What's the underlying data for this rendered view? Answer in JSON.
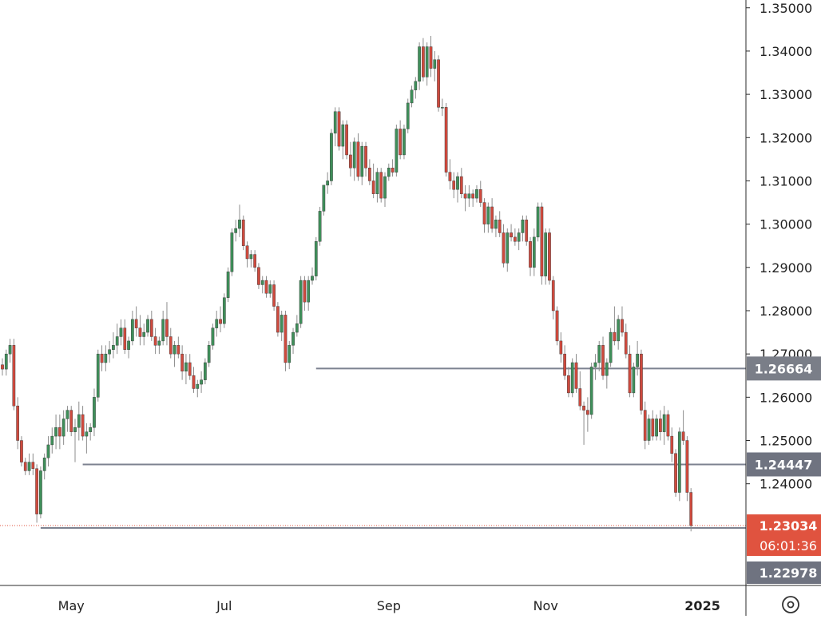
{
  "chart_data": {
    "type": "candlestick",
    "title": "",
    "xlabel": "",
    "ylabel": "",
    "ylim": [
      1.2165,
      1.3518
    ],
    "y_ticks": [
      "1.35000",
      "1.34000",
      "1.33000",
      "1.32000",
      "1.31000",
      "1.30000",
      "1.29000",
      "1.28000",
      "1.27000",
      "1.26000",
      "1.25000",
      "1.24000"
    ],
    "x_ticks": [
      {
        "label": "May",
        "bold": false
      },
      {
        "label": "Jul",
        "bold": false
      },
      {
        "label": "Sep",
        "bold": false
      },
      {
        "label": "Nov",
        "bold": false
      },
      {
        "label": "2025",
        "bold": true
      }
    ],
    "colors": {
      "up": "#3f8f5a",
      "down": "#cf4a3e",
      "wick": "#8c8c8c",
      "level_line": "#7c8290",
      "last_price": "#e0533f",
      "badge_gray": "#7a7e88",
      "badge_dark": "#6f7380",
      "axis": "#d8d8d8"
    },
    "levels": [
      {
        "value": 1.26664,
        "label": "1.26664"
      },
      {
        "value": 1.24447,
        "label": "1.24447"
      }
    ],
    "last_price": {
      "value": 1.23034,
      "label": "1.23034",
      "countdown": "06:01:36"
    },
    "low_marker": {
      "value": 1.22978,
      "label": "1.22978"
    },
    "candles": [
      [
        1.2675,
        1.269,
        1.265,
        1.2665
      ],
      [
        1.2665,
        1.271,
        1.265,
        1.27
      ],
      [
        1.27,
        1.2735,
        1.268,
        1.272
      ],
      [
        1.272,
        1.2735,
        1.257,
        1.258
      ],
      [
        1.258,
        1.26,
        1.248,
        1.25
      ],
      [
        1.25,
        1.251,
        1.244,
        1.245
      ],
      [
        1.245,
        1.246,
        1.242,
        1.243
      ],
      [
        1.243,
        1.247,
        1.242,
        1.245
      ],
      [
        1.245,
        1.247,
        1.242,
        1.2435
      ],
      [
        1.2435,
        1.2445,
        1.231,
        1.233
      ],
      [
        1.233,
        1.244,
        1.232,
        1.243
      ],
      [
        1.243,
        1.247,
        1.241,
        1.246
      ],
      [
        1.246,
        1.251,
        1.244,
        1.249
      ],
      [
        1.249,
        1.253,
        1.247,
        1.251
      ],
      [
        1.251,
        1.256,
        1.248,
        1.253
      ],
      [
        1.253,
        1.256,
        1.248,
        1.251
      ],
      [
        1.251,
        1.257,
        1.249,
        1.255
      ],
      [
        1.255,
        1.258,
        1.252,
        1.257
      ],
      [
        1.257,
        1.258,
        1.251,
        1.252
      ],
      [
        1.252,
        1.255,
        1.245,
        1.253
      ],
      [
        1.253,
        1.259,
        1.25,
        1.256
      ],
      [
        1.256,
        1.258,
        1.25,
        1.251
      ],
      [
        1.251,
        1.254,
        1.247,
        1.252
      ],
      [
        1.252,
        1.254,
        1.25,
        1.253
      ],
      [
        1.253,
        1.262,
        1.251,
        1.26
      ],
      [
        1.26,
        1.271,
        1.259,
        1.27
      ],
      [
        1.27,
        1.272,
        1.266,
        1.268
      ],
      [
        1.268,
        1.272,
        1.266,
        1.27
      ],
      [
        1.27,
        1.273,
        1.268,
        1.271
      ],
      [
        1.271,
        1.275,
        1.269,
        1.272
      ],
      [
        1.272,
        1.277,
        1.27,
        1.274
      ],
      [
        1.274,
        1.278,
        1.272,
        1.276
      ],
      [
        1.276,
        1.278,
        1.27,
        1.271
      ],
      [
        1.271,
        1.274,
        1.269,
        1.273
      ],
      [
        1.273,
        1.28,
        1.272,
        1.278
      ],
      [
        1.278,
        1.281,
        1.274,
        1.276
      ],
      [
        1.276,
        1.279,
        1.272,
        1.274
      ],
      [
        1.274,
        1.277,
        1.272,
        1.275
      ],
      [
        1.275,
        1.279,
        1.274,
        1.278
      ],
      [
        1.278,
        1.28,
        1.273,
        1.274
      ],
      [
        1.274,
        1.276,
        1.27,
        1.272
      ],
      [
        1.272,
        1.274,
        1.27,
        1.273
      ],
      [
        1.273,
        1.28,
        1.272,
        1.278
      ],
      [
        1.278,
        1.282,
        1.272,
        1.274
      ],
      [
        1.274,
        1.276,
        1.269,
        1.27
      ],
      [
        1.27,
        1.273,
        1.267,
        1.272
      ],
      [
        1.272,
        1.274,
        1.269,
        1.27
      ],
      [
        1.27,
        1.272,
        1.264,
        1.266
      ],
      [
        1.266,
        1.27,
        1.263,
        1.268
      ],
      [
        1.268,
        1.27,
        1.264,
        1.265
      ],
      [
        1.265,
        1.267,
        1.261,
        1.262
      ],
      [
        1.262,
        1.264,
        1.26,
        1.263
      ],
      [
        1.263,
        1.266,
        1.261,
        1.264
      ],
      [
        1.264,
        1.269,
        1.263,
        1.268
      ],
      [
        1.268,
        1.273,
        1.267,
        1.272
      ],
      [
        1.272,
        1.277,
        1.271,
        1.276
      ],
      [
        1.276,
        1.28,
        1.274,
        1.278
      ],
      [
        1.278,
        1.281,
        1.275,
        1.277
      ],
      [
        1.277,
        1.284,
        1.276,
        1.283
      ],
      [
        1.283,
        1.29,
        1.282,
        1.289
      ],
      [
        1.289,
        1.299,
        1.288,
        1.298
      ],
      [
        1.298,
        1.301,
        1.296,
        1.299
      ],
      [
        1.299,
        1.3045,
        1.297,
        1.301
      ],
      [
        1.301,
        1.302,
        1.294,
        1.295
      ],
      [
        1.295,
        1.296,
        1.29,
        1.292
      ],
      [
        1.292,
        1.294,
        1.29,
        1.293
      ],
      [
        1.293,
        1.294,
        1.289,
        1.29
      ],
      [
        1.29,
        1.291,
        1.285,
        1.286
      ],
      [
        1.286,
        1.288,
        1.284,
        1.287
      ],
      [
        1.287,
        1.288,
        1.283,
        1.284
      ],
      [
        1.284,
        1.287,
        1.283,
        1.286
      ],
      [
        1.286,
        1.287,
        1.28,
        1.281
      ],
      [
        1.281,
        1.282,
        1.274,
        1.275
      ],
      [
        1.275,
        1.28,
        1.273,
        1.279
      ],
      [
        1.279,
        1.28,
        1.266,
        1.268
      ],
      [
        1.268,
        1.273,
        1.2665,
        1.272
      ],
      [
        1.272,
        1.276,
        1.27,
        1.275
      ],
      [
        1.275,
        1.279,
        1.274,
        1.277
      ],
      [
        1.277,
        1.288,
        1.276,
        1.287
      ],
      [
        1.287,
        1.288,
        1.28,
        1.282
      ],
      [
        1.282,
        1.288,
        1.28,
        1.287
      ],
      [
        1.287,
        1.29,
        1.286,
        1.288
      ],
      [
        1.288,
        1.297,
        1.287,
        1.296
      ],
      [
        1.296,
        1.304,
        1.295,
        1.303
      ],
      [
        1.303,
        1.309,
        1.302,
        1.309
      ],
      [
        1.309,
        1.312,
        1.307,
        1.31
      ],
      [
        1.31,
        1.322,
        1.309,
        1.321
      ],
      [
        1.321,
        1.327,
        1.318,
        1.326
      ],
      [
        1.326,
        1.327,
        1.317,
        1.318
      ],
      [
        1.318,
        1.324,
        1.315,
        1.323
      ],
      [
        1.323,
        1.324,
        1.315,
        1.316
      ],
      [
        1.316,
        1.319,
        1.311,
        1.313
      ],
      [
        1.313,
        1.32,
        1.31,
        1.319
      ],
      [
        1.319,
        1.321,
        1.31,
        1.311
      ],
      [
        1.311,
        1.319,
        1.309,
        1.318
      ],
      [
        1.318,
        1.319,
        1.311,
        1.313
      ],
      [
        1.313,
        1.315,
        1.309,
        1.31
      ],
      [
        1.31,
        1.314,
        1.306,
        1.307
      ],
      [
        1.307,
        1.313,
        1.305,
        1.312
      ],
      [
        1.312,
        1.313,
        1.305,
        1.306
      ],
      [
        1.306,
        1.312,
        1.304,
        1.311
      ],
      [
        1.311,
        1.314,
        1.31,
        1.313
      ],
      [
        1.313,
        1.315,
        1.311,
        1.312
      ],
      [
        1.312,
        1.323,
        1.311,
        1.322
      ],
      [
        1.322,
        1.324,
        1.315,
        1.316
      ],
      [
        1.316,
        1.323,
        1.315,
        1.322
      ],
      [
        1.322,
        1.329,
        1.321,
        1.328
      ],
      [
        1.328,
        1.332,
        1.327,
        1.331
      ],
      [
        1.331,
        1.334,
        1.329,
        1.333
      ],
      [
        1.333,
        1.342,
        1.331,
        1.341
      ],
      [
        1.341,
        1.343,
        1.333,
        1.334
      ],
      [
        1.334,
        1.342,
        1.332,
        1.341
      ],
      [
        1.341,
        1.3435,
        1.334,
        1.336
      ],
      [
        1.336,
        1.34,
        1.333,
        1.338
      ],
      [
        1.338,
        1.339,
        1.326,
        1.327
      ],
      [
        1.327,
        1.329,
        1.325,
        1.327
      ],
      [
        1.327,
        1.328,
        1.311,
        1.312
      ],
      [
        1.312,
        1.315,
        1.308,
        1.31
      ],
      [
        1.31,
        1.312,
        1.306,
        1.308
      ],
      [
        1.308,
        1.312,
        1.305,
        1.311
      ],
      [
        1.311,
        1.313,
        1.306,
        1.307
      ],
      [
        1.307,
        1.309,
        1.303,
        1.306
      ],
      [
        1.306,
        1.309,
        1.304,
        1.307
      ],
      [
        1.307,
        1.308,
        1.304,
        1.306
      ],
      [
        1.306,
        1.309,
        1.305,
        1.308
      ],
      [
        1.308,
        1.31,
        1.304,
        1.305
      ],
      [
        1.305,
        1.306,
        1.298,
        1.3
      ],
      [
        1.3,
        1.305,
        1.298,
        1.304
      ],
      [
        1.304,
        1.306,
        1.298,
        1.299
      ],
      [
        1.299,
        1.302,
        1.297,
        1.301
      ],
      [
        1.301,
        1.303,
        1.297,
        1.298
      ],
      [
        1.298,
        1.3,
        1.29,
        1.291
      ],
      [
        1.291,
        1.299,
        1.289,
        1.298
      ],
      [
        1.298,
        1.3,
        1.296,
        1.297
      ],
      [
        1.297,
        1.299,
        1.295,
        1.296
      ],
      [
        1.296,
        1.299,
        1.294,
        1.298
      ],
      [
        1.298,
        1.302,
        1.296,
        1.301
      ],
      [
        1.301,
        1.302,
        1.295,
        1.296
      ],
      [
        1.296,
        1.297,
        1.288,
        1.29
      ],
      [
        1.29,
        1.299,
        1.288,
        1.297
      ],
      [
        1.297,
        1.305,
        1.296,
        1.304
      ],
      [
        1.304,
        1.305,
        1.286,
        1.288
      ],
      [
        1.288,
        1.299,
        1.286,
        1.298
      ],
      [
        1.298,
        1.299,
        1.286,
        1.287
      ],
      [
        1.287,
        1.288,
        1.278,
        1.28
      ],
      [
        1.28,
        1.281,
        1.272,
        1.273
      ],
      [
        1.273,
        1.275,
        1.268,
        1.27
      ],
      [
        1.27,
        1.272,
        1.264,
        1.265
      ],
      [
        1.265,
        1.267,
        1.26,
        1.261
      ],
      [
        1.261,
        1.269,
        1.26,
        1.268
      ],
      [
        1.268,
        1.27,
        1.261,
        1.262
      ],
      [
        1.262,
        1.266,
        1.257,
        1.258
      ],
      [
        1.258,
        1.259,
        1.249,
        1.257
      ],
      [
        1.257,
        1.26,
        1.252,
        1.256
      ],
      [
        1.256,
        1.268,
        1.255,
        1.267
      ],
      [
        1.267,
        1.27,
        1.264,
        1.268
      ],
      [
        1.268,
        1.273,
        1.266,
        1.272
      ],
      [
        1.272,
        1.274,
        1.264,
        1.265
      ],
      [
        1.265,
        1.269,
        1.262,
        1.268
      ],
      [
        1.268,
        1.276,
        1.267,
        1.275
      ],
      [
        1.275,
        1.281,
        1.272,
        1.273
      ],
      [
        1.273,
        1.279,
        1.271,
        1.278
      ],
      [
        1.278,
        1.281,
        1.274,
        1.275
      ],
      [
        1.275,
        1.277,
        1.269,
        1.27
      ],
      [
        1.27,
        1.272,
        1.26,
        1.261
      ],
      [
        1.261,
        1.268,
        1.26,
        1.267
      ],
      [
        1.267,
        1.273,
        1.265,
        1.27
      ],
      [
        1.27,
        1.271,
        1.256,
        1.257
      ],
      [
        1.257,
        1.259,
        1.248,
        1.25
      ],
      [
        1.25,
        1.256,
        1.249,
        1.255
      ],
      [
        1.255,
        1.257,
        1.25,
        1.251
      ],
      [
        1.251,
        1.256,
        1.25,
        1.255
      ],
      [
        1.255,
        1.257,
        1.25,
        1.252
      ],
      [
        1.252,
        1.258,
        1.249,
        1.256
      ],
      [
        1.256,
        1.257,
        1.25,
        1.251
      ],
      [
        1.251,
        1.253,
        1.245,
        1.247
      ],
      [
        1.247,
        1.248,
        1.237,
        1.238
      ],
      [
        1.238,
        1.253,
        1.236,
        1.252
      ],
      [
        1.252,
        1.257,
        1.249,
        1.25
      ],
      [
        1.25,
        1.251,
        1.236,
        1.238
      ],
      [
        1.238,
        1.239,
        1.229,
        1.2303
      ]
    ]
  }
}
